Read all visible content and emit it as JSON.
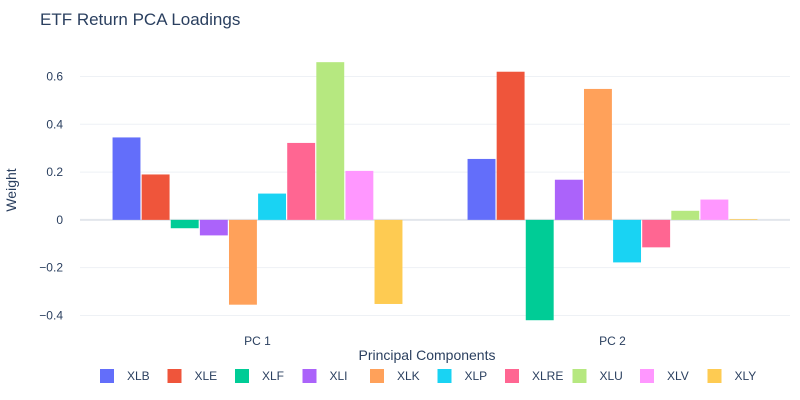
{
  "chart_data": {
    "type": "bar",
    "title": "ETF Return PCA Loadings",
    "xlabel": "Principal Components",
    "ylabel": "Weight",
    "categories": [
      "PC 1",
      "PC 2"
    ],
    "ylim": [
      -0.44,
      0.69
    ],
    "yticks": [
      -0.4,
      -0.2,
      0,
      0.2,
      0.4,
      0.6
    ],
    "ytick_labels": [
      "−0.4",
      "−0.2",
      "0",
      "0.2",
      "0.4",
      "0.6"
    ],
    "grid": true,
    "legend_position": "bottom",
    "series": [
      {
        "name": "XLB",
        "color": "#636efa",
        "values": [
          0.345,
          0.255
        ]
      },
      {
        "name": "XLE",
        "color": "#ef553b",
        "values": [
          0.19,
          0.62
        ]
      },
      {
        "name": "XLF",
        "color": "#00cc96",
        "values": [
          -0.035,
          -0.42
        ]
      },
      {
        "name": "XLI",
        "color": "#ab63fa",
        "values": [
          -0.065,
          0.168
        ]
      },
      {
        "name": "XLK",
        "color": "#ffa15a",
        "values": [
          -0.355,
          0.548
        ]
      },
      {
        "name": "XLP",
        "color": "#19d3f3",
        "values": [
          0.11,
          -0.178
        ]
      },
      {
        "name": "XLRE",
        "color": "#ff6692",
        "values": [
          0.322,
          -0.115
        ]
      },
      {
        "name": "XLU",
        "color": "#b6e880",
        "values": [
          0.66,
          0.038
        ]
      },
      {
        "name": "XLV",
        "color": "#ff97ff",
        "values": [
          0.205,
          0.085
        ]
      },
      {
        "name": "XLY",
        "color": "#fecb52",
        "values": [
          -0.352,
          0.003
        ]
      }
    ]
  }
}
